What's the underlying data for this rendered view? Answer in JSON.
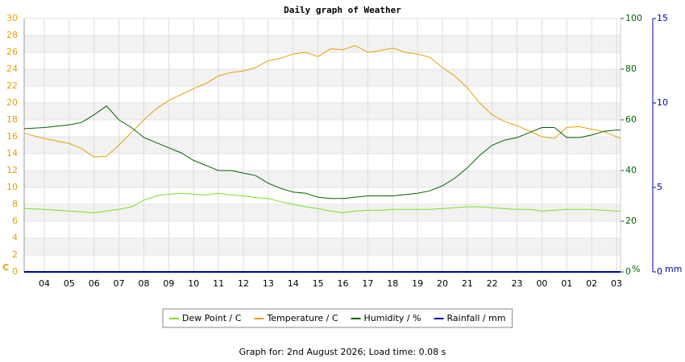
{
  "chart_data": {
    "type": "line",
    "title": "Daily graph of Weather",
    "y_label": "C",
    "y2_label": "%",
    "y3_label": "mm",
    "footer": "Graph for: 2nd August 2026; Load time: 0.08 s",
    "x": [
      3.19,
      4,
      5,
      5.5,
      6,
      6.5,
      7,
      7.5,
      8,
      8.5,
      9,
      9.5,
      10,
      10.5,
      11,
      11.5,
      12,
      12.5,
      13,
      13.5,
      14,
      14.5,
      15,
      15.5,
      16,
      16.5,
      17,
      17.5,
      18,
      18.5,
      19,
      19.5,
      20,
      20.5,
      21,
      21.5,
      22,
      22.5,
      23,
      23.5,
      24,
      24.5,
      25,
      25.5,
      26,
      26.5,
      27,
      27.16
    ],
    "xlim": [
      3.19,
      27.16
    ],
    "xticks": [
      {
        "value": 4,
        "label": "04"
      },
      {
        "value": 5,
        "label": "05"
      },
      {
        "value": 6,
        "label": "06"
      },
      {
        "value": 7,
        "label": "07"
      },
      {
        "value": 8,
        "label": "08"
      },
      {
        "value": 9,
        "label": "09"
      },
      10,
      11,
      12,
      13,
      14,
      15,
      16,
      17,
      18,
      19,
      20,
      21,
      22,
      23,
      {
        "value": 24,
        "label": "00"
      },
      {
        "value": 25,
        "label": "01"
      },
      {
        "value": 26,
        "label": "02"
      },
      {
        "value": 27,
        "label": "03"
      }
    ],
    "ylim": [
      0,
      30
    ],
    "yticks": [
      0,
      2,
      4,
      6,
      8,
      10,
      12,
      14,
      16,
      18,
      20,
      22,
      24,
      26,
      28,
      30
    ],
    "y2lim": [
      0,
      100
    ],
    "y2ticks": [
      0,
      20,
      40,
      60,
      80,
      100
    ],
    "y3lim": [
      0,
      15
    ],
    "y3ticks": [
      0,
      5,
      10,
      15
    ],
    "grid": true,
    "series": [
      {
        "name": "Dew Point / C",
        "color": "#7ee020",
        "values": [
          7.5,
          7.4,
          7.2,
          7.1,
          7.0,
          7.2,
          7.4,
          7.7,
          8.5,
          9.0,
          9.2,
          9.3,
          9.2,
          9.1,
          9.3,
          9.1,
          9.0,
          8.8,
          8.7,
          8.3,
          8.0,
          7.7,
          7.5,
          7.2,
          7.0,
          7.2,
          7.3,
          7.3,
          7.4,
          7.4,
          7.4,
          7.4,
          7.5,
          7.6,
          7.7,
          7.7,
          7.6,
          7.5,
          7.4,
          7.4,
          7.2,
          7.3,
          7.4,
          7.4,
          7.4,
          7.3,
          7.2,
          7.2
        ]
      },
      {
        "name": "Temperature / C",
        "color": "#e8a000",
        "values": [
          16.4,
          15.8,
          15.2,
          14.6,
          13.6,
          13.7,
          15.0,
          16.5,
          18.0,
          19.3,
          20.3,
          21.0,
          21.7,
          22.3,
          23.2,
          23.6,
          23.8,
          24.2,
          25.0,
          25.3,
          25.8,
          26.0,
          25.5,
          26.4,
          26.3,
          26.8,
          26.0,
          26.2,
          26.5,
          26.0,
          25.8,
          25.4,
          24.2,
          23.2,
          21.8,
          20.0,
          18.6,
          17.8,
          17.3,
          16.7,
          16.0,
          15.8,
          17.1,
          17.2,
          16.9,
          16.6,
          16.0,
          15.8
        ]
      },
      {
        "name": "Humidity / %",
        "color": "#006400",
        "axis": "y2",
        "values": [
          56.5,
          57,
          58,
          59,
          62,
          65.5,
          60,
          57,
          53,
          51,
          49,
          47,
          44,
          42,
          40,
          40,
          39,
          38,
          35,
          33,
          31.5,
          31,
          29.5,
          29,
          29,
          29.5,
          30,
          30,
          30,
          30.5,
          31,
          32,
          34,
          37,
          41,
          46,
          50,
          52,
          53,
          55,
          57,
          57,
          53,
          53,
          54,
          55.5,
          56,
          56
        ]
      },
      {
        "name": "Rainfall / mm",
        "color": "#0000aa",
        "axis": "y3",
        "values": [
          0,
          0,
          0,
          0,
          0,
          0,
          0,
          0,
          0,
          0,
          0,
          0,
          0,
          0,
          0,
          0,
          0,
          0,
          0,
          0,
          0,
          0,
          0,
          0,
          0,
          0,
          0,
          0,
          0,
          0,
          0,
          0,
          0,
          0,
          0,
          0,
          0,
          0,
          0,
          0,
          0,
          0,
          0,
          0,
          0,
          0,
          0,
          0
        ]
      }
    ]
  }
}
